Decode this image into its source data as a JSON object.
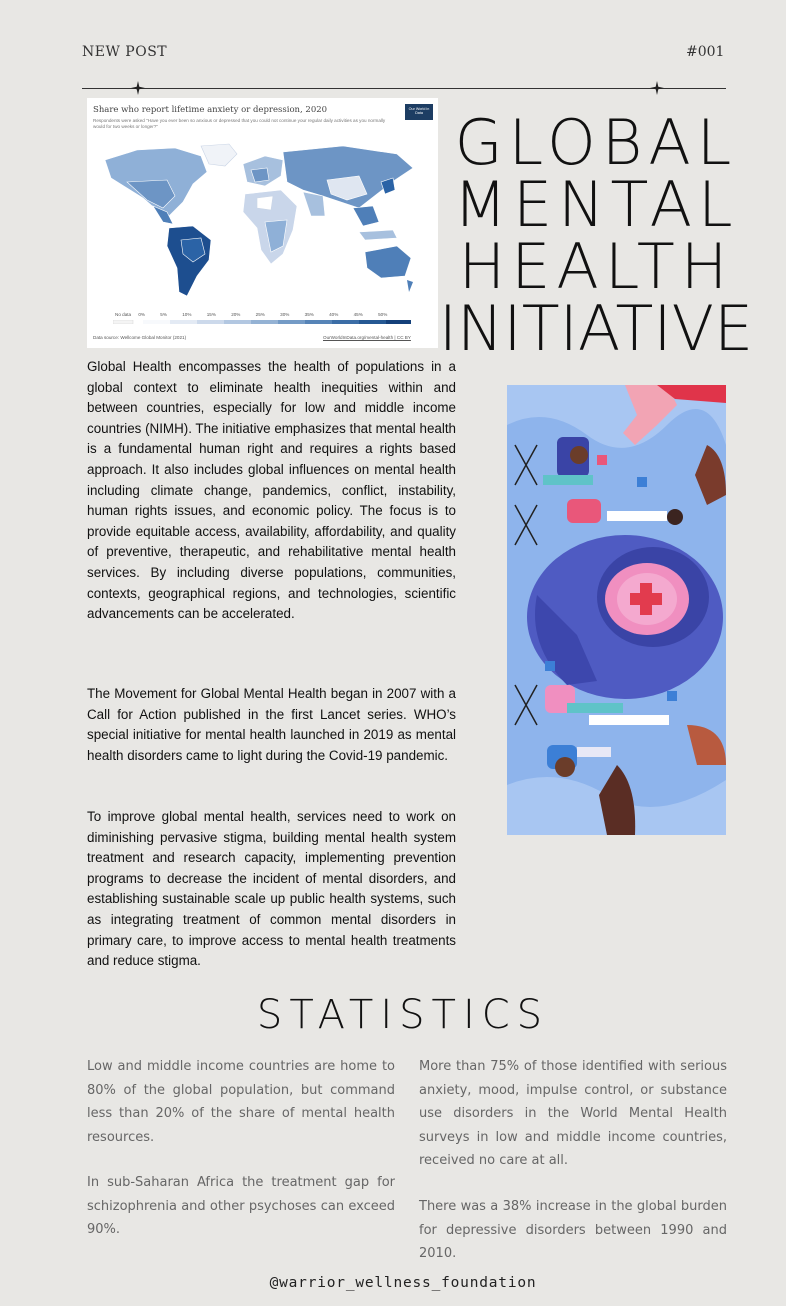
{
  "header": {
    "left_label": "NEW POST",
    "right_label": "#001"
  },
  "map": {
    "title": "Share who report lifetime anxiety or depression, 2020",
    "subtitle": "Respondents were asked \"Have you ever been so anxious or depressed that you could not continue your regular daily activities as you normally would for two weeks or longer?\"",
    "badge": "Our World in Data",
    "legend_no_data": "No data",
    "legend_ticks": [
      "0%",
      "5%",
      "10%",
      "15%",
      "20%",
      "25%",
      "30%",
      "35%",
      "40%",
      "45%",
      "50%"
    ],
    "source": "Data source: Wellcome Global Monitor (2021)",
    "credit": "OurWorldInData.org/mental-health | CC BY",
    "colors": {
      "light": "#dfe6f1",
      "mid": "#6d95c5",
      "dark": "#1d4e8f"
    }
  },
  "title": {
    "line1": "GLOBAL",
    "line2": "MENTAL",
    "line3": "HEALTH",
    "line4": "INITIATIVE"
  },
  "body": {
    "p1": "Global Health encompasses the health of populations in a global context to eliminate health inequities within and between countries, especially for low and middle income countries (NIMH). The initiative emphasizes that mental health is a fundamental human right and requires a rights based approach. It also includes global influences on mental health including climate change, pandemics, conflict, instability, human rights issues, and economic policy. The focus is to provide equitable access, availability, affordability, and quality of preventive, therapeutic, and rehabilitative mental health services. By including diverse populations, communities, contexts, geographical regions, and technologies, scientific advancements can be accelerated.",
    "p2": "The Movement for Global Mental Health began in 2007 with a Call for Action published in the first Lancet series. WHO’s special initiative for mental health launched in 2019 as mental health disorders came to light during the Covid-19 pandemic.",
    "p3": "To improve global mental health, services need to work on diminishing pervasive stigma, building mental health system treatment and research capacity, implementing prevention programs to decrease the incident of mental disorders, and establishing sustainable scale up public health systems, such as integrating treatment of common mental disorders in primary care, to improve access to mental health treatments and reduce stigma."
  },
  "stats": {
    "heading": "STATISTICS",
    "s1": "Low and middle income countries are home to 80% of the global population, but command less than 20% of the share of mental health resources.",
    "s2": "In sub-Saharan Africa the treatment gap for schizophrenia and other psychoses can exceed 90%.",
    "s3": "More than 75% of those identified with serious anxiety, mood, impulse control, or substance use disorders in the World Mental Health surveys in low and middle income countries, received no care at all.",
    "s4": "There was a 38% increase in the global burden for depressive disorders between 1990 and 2010."
  },
  "footer": {
    "handle": "@warrior_wellness_foundation"
  }
}
